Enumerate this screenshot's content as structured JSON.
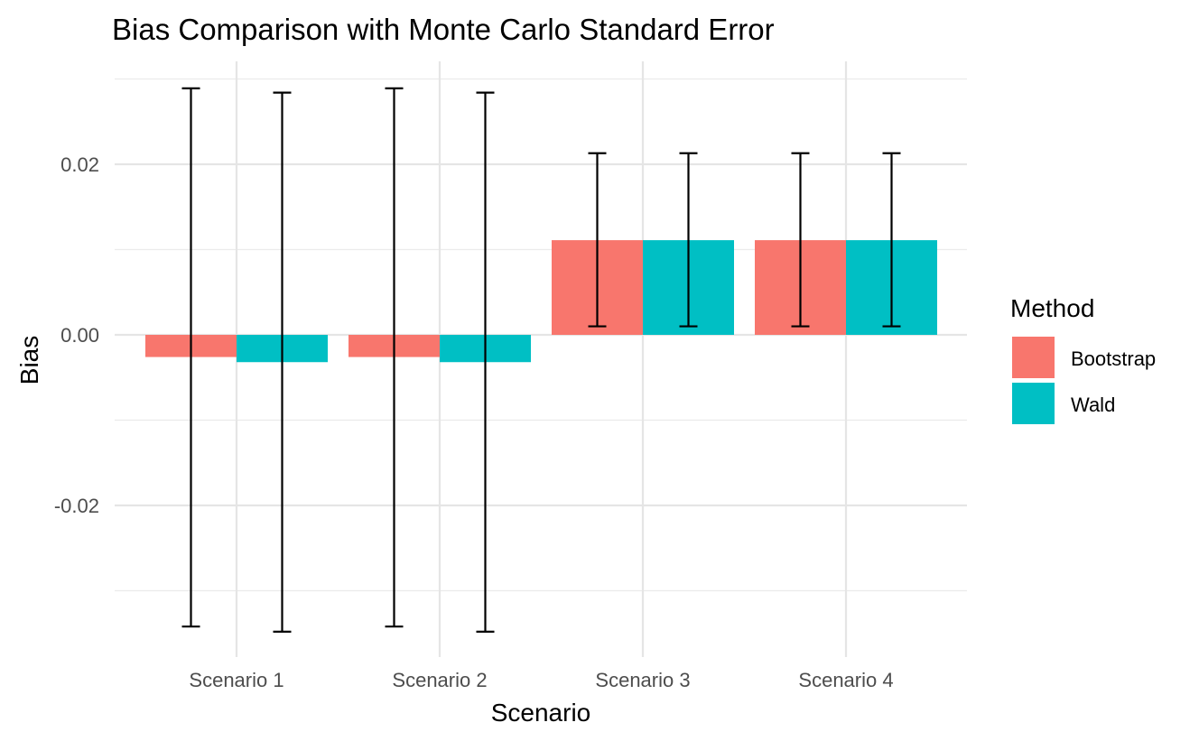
{
  "chart_data": {
    "type": "bar",
    "title": "Bias Comparison with Monte Carlo Standard Error",
    "xlabel": "Scenario",
    "ylabel": "Bias",
    "categories": [
      "Scenario 1",
      "Scenario 2",
      "Scenario 3",
      "Scenario 4"
    ],
    "series": [
      {
        "name": "Bootstrap",
        "color": "#F8766D",
        "values": [
          -0.0026,
          -0.0026,
          0.0111,
          0.0111
        ],
        "error_low": [
          -0.0342,
          -0.0342,
          0.001,
          0.001
        ],
        "error_high": [
          0.0289,
          0.0289,
          0.0213,
          0.0213
        ]
      },
      {
        "name": "Wald",
        "color": "#00BFC4",
        "values": [
          -0.0032,
          -0.0032,
          0.0111,
          0.0111
        ],
        "error_low": [
          -0.0348,
          -0.0348,
          0.001,
          0.001
        ],
        "error_high": [
          0.0284,
          0.0284,
          0.0213,
          0.0213
        ]
      }
    ],
    "yticks": [
      -0.02,
      0.0,
      0.02
    ],
    "ytick_labels": [
      "-0.02",
      "0.00",
      "0.02"
    ],
    "ylim": [
      -0.038,
      0.032
    ],
    "legend": {
      "title": "Method",
      "position": "right"
    },
    "grid": true
  }
}
